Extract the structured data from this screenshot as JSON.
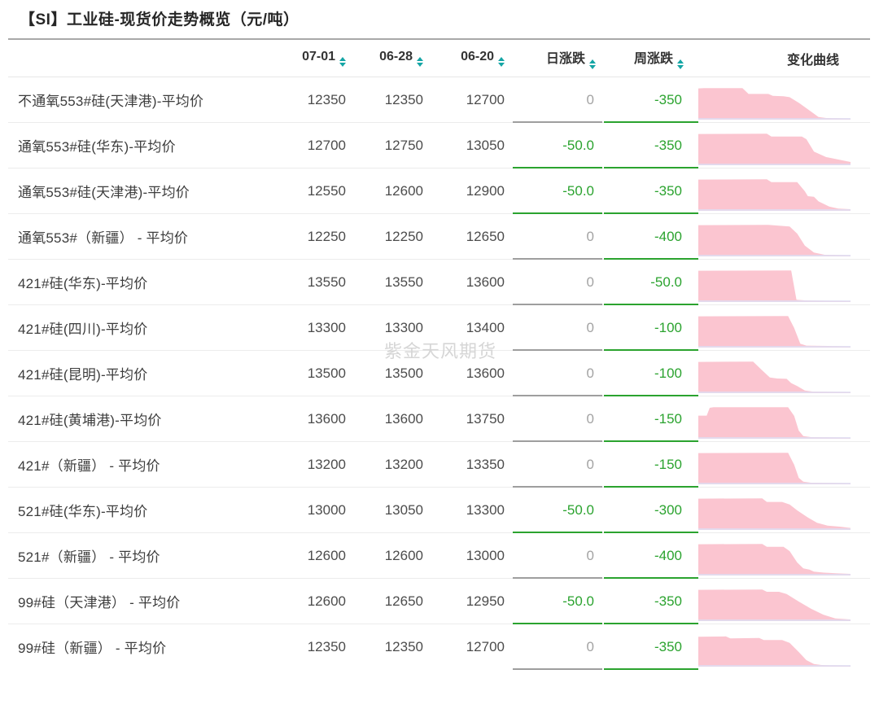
{
  "title": "【SI】工业硅-现货价走势概览（元/吨）",
  "watermark": "紫金天风期货",
  "colors": {
    "green": "#2ba32f",
    "zero_gray": "#a3a3a3",
    "underline_gray": "#9e9e9e",
    "teal": "#15a5a5",
    "pink": "#fbc5d0",
    "spark_baseline": "#dce0f5",
    "text": "#3d3d3d",
    "num": "#4c4c4c",
    "header_text": "#333333",
    "divider": "#ececec",
    "title_rule": "#a9a9a9",
    "watermark": "#d6d6d6"
  },
  "header": {
    "cols": [
      {
        "label": "07-01",
        "sortable": true
      },
      {
        "label": "06-28",
        "sortable": true
      },
      {
        "label": "06-20",
        "sortable": true
      },
      {
        "label": "日涨跌",
        "sortable": true
      },
      {
        "label": "周涨跌",
        "sortable": true
      },
      {
        "label": "变化曲线",
        "sortable": false
      }
    ]
  },
  "rows": [
    {
      "name": "不通氧553#硅(天津港)-平均价",
      "v0701": "12350",
      "v0628": "12350",
      "v0620": "12700",
      "daily": "0",
      "weekly": "-350",
      "spark": [
        [
          0,
          0.96
        ],
        [
          0.04,
          0.97
        ],
        [
          0.29,
          0.97
        ],
        [
          0.33,
          0.79
        ],
        [
          0.46,
          0.79
        ],
        [
          0.49,
          0.73
        ],
        [
          0.56,
          0.72
        ],
        [
          0.6,
          0.69
        ],
        [
          0.66,
          0.52
        ],
        [
          0.74,
          0.25
        ],
        [
          0.79,
          0.08
        ],
        [
          0.84,
          0.05
        ],
        [
          1,
          0.04
        ]
      ]
    },
    {
      "name": "通氧553#硅(华东)-平均价",
      "v0701": "12700",
      "v0628": "12750",
      "v0620": "13050",
      "daily": "-50.0",
      "weekly": "-350",
      "spark": [
        [
          0,
          0.96
        ],
        [
          0.45,
          0.97
        ],
        [
          0.48,
          0.88
        ],
        [
          0.68,
          0.88
        ],
        [
          0.71,
          0.8
        ],
        [
          0.76,
          0.42
        ],
        [
          0.84,
          0.25
        ],
        [
          1,
          0.1
        ]
      ]
    },
    {
      "name": "通氧553#硅(天津港)-平均价",
      "v0701": "12550",
      "v0628": "12600",
      "v0620": "12900",
      "daily": "-50.0",
      "weekly": "-350",
      "spark": [
        [
          0,
          0.96
        ],
        [
          0.45,
          0.97
        ],
        [
          0.48,
          0.88
        ],
        [
          0.65,
          0.88
        ],
        [
          0.7,
          0.6
        ],
        [
          0.72,
          0.45
        ],
        [
          0.76,
          0.43
        ],
        [
          0.79,
          0.29
        ],
        [
          0.86,
          0.13
        ],
        [
          0.92,
          0.07
        ],
        [
          1,
          0.05
        ]
      ]
    },
    {
      "name": "通氧553#（新疆） - 平均价",
      "v0701": "12250",
      "v0628": "12250",
      "v0620": "12650",
      "daily": "0",
      "weekly": "-400",
      "spark": [
        [
          0,
          0.96
        ],
        [
          0.46,
          0.97
        ],
        [
          0.6,
          0.92
        ],
        [
          0.65,
          0.7
        ],
        [
          0.7,
          0.33
        ],
        [
          0.76,
          0.12
        ],
        [
          0.83,
          0.05
        ],
        [
          1,
          0.04
        ]
      ]
    },
    {
      "name": "421#硅(华东)-平均价",
      "v0701": "13550",
      "v0628": "13550",
      "v0620": "13600",
      "daily": "0",
      "weekly": "-50.0",
      "spark": [
        [
          0,
          0.96
        ],
        [
          0.61,
          0.97
        ],
        [
          0.645,
          0.07
        ],
        [
          0.7,
          0.05
        ],
        [
          1,
          0.04
        ]
      ]
    },
    {
      "name": "421#硅(四川)-平均价",
      "v0701": "13300",
      "v0628": "13300",
      "v0620": "13400",
      "daily": "0",
      "weekly": "-100",
      "spark": [
        [
          0,
          0.96
        ],
        [
          0.59,
          0.97
        ],
        [
          0.63,
          0.6
        ],
        [
          0.67,
          0.12
        ],
        [
          0.71,
          0.06
        ],
        [
          1,
          0.04
        ]
      ]
    },
    {
      "name": "421#硅(昆明)-平均价",
      "v0701": "13500",
      "v0628": "13500",
      "v0620": "13600",
      "daily": "0",
      "weekly": "-100",
      "spark": [
        [
          0,
          0.96
        ],
        [
          0.36,
          0.97
        ],
        [
          0.42,
          0.7
        ],
        [
          0.47,
          0.48
        ],
        [
          0.52,
          0.45
        ],
        [
          0.58,
          0.44
        ],
        [
          0.61,
          0.31
        ],
        [
          0.65,
          0.22
        ],
        [
          0.7,
          0.08
        ],
        [
          0.75,
          0.05
        ],
        [
          1,
          0.04
        ]
      ]
    },
    {
      "name": "421#硅(黄埔港)-平均价",
      "v0701": "13600",
      "v0628": "13600",
      "v0620": "13750",
      "daily": "0",
      "weekly": "-150",
      "spark": [
        [
          0,
          0.71
        ],
        [
          0.055,
          0.71
        ],
        [
          0.075,
          0.95
        ],
        [
          0.1,
          0.97
        ],
        [
          0.59,
          0.97
        ],
        [
          0.63,
          0.7
        ],
        [
          0.66,
          0.25
        ],
        [
          0.69,
          0.08
        ],
        [
          0.74,
          0.05
        ],
        [
          1,
          0.04
        ]
      ]
    },
    {
      "name": "421#（新疆） - 平均价",
      "v0701": "13200",
      "v0628": "13200",
      "v0620": "13350",
      "daily": "0",
      "weekly": "-150",
      "spark": [
        [
          0,
          0.96
        ],
        [
          0.59,
          0.97
        ],
        [
          0.63,
          0.6
        ],
        [
          0.66,
          0.2
        ],
        [
          0.69,
          0.08
        ],
        [
          0.74,
          0.05
        ],
        [
          1,
          0.04
        ]
      ]
    },
    {
      "name": "521#硅(华东)-平均价",
      "v0701": "13000",
      "v0628": "13050",
      "v0620": "13300",
      "daily": "-50.0",
      "weekly": "-300",
      "spark": [
        [
          0,
          0.96
        ],
        [
          0.42,
          0.97
        ],
        [
          0.45,
          0.86
        ],
        [
          0.55,
          0.86
        ],
        [
          0.6,
          0.78
        ],
        [
          0.65,
          0.6
        ],
        [
          0.72,
          0.38
        ],
        [
          0.78,
          0.22
        ],
        [
          0.85,
          0.13
        ],
        [
          0.93,
          0.1
        ],
        [
          1,
          0.06
        ]
      ]
    },
    {
      "name": "521#（新疆） - 平均价",
      "v0701": "12600",
      "v0628": "12600",
      "v0620": "13000",
      "daily": "0",
      "weekly": "-400",
      "spark": [
        [
          0,
          0.96
        ],
        [
          0.42,
          0.97
        ],
        [
          0.45,
          0.88
        ],
        [
          0.56,
          0.88
        ],
        [
          0.6,
          0.75
        ],
        [
          0.65,
          0.4
        ],
        [
          0.69,
          0.22
        ],
        [
          0.73,
          0.18
        ],
        [
          0.76,
          0.12
        ],
        [
          0.82,
          0.09
        ],
        [
          0.9,
          0.07
        ],
        [
          1,
          0.05
        ]
      ]
    },
    {
      "name": "99#硅（天津港） - 平均价",
      "v0701": "12600",
      "v0628": "12650",
      "v0620": "12950",
      "daily": "-50.0",
      "weekly": "-350",
      "spark": [
        [
          0,
          0.96
        ],
        [
          0.42,
          0.97
        ],
        [
          0.45,
          0.9
        ],
        [
          0.53,
          0.9
        ],
        [
          0.58,
          0.83
        ],
        [
          0.66,
          0.6
        ],
        [
          0.74,
          0.38
        ],
        [
          0.82,
          0.2
        ],
        [
          0.9,
          0.08
        ],
        [
          1,
          0.05
        ]
      ]
    },
    {
      "name": "99#硅（新疆） - 平均价",
      "v0701": "12350",
      "v0628": "12350",
      "v0620": "12700",
      "daily": "0",
      "weekly": "-350",
      "spark": [
        [
          0,
          0.92
        ],
        [
          0.18,
          0.93
        ],
        [
          0.21,
          0.87
        ],
        [
          0.4,
          0.88
        ],
        [
          0.43,
          0.82
        ],
        [
          0.55,
          0.82
        ],
        [
          0.6,
          0.73
        ],
        [
          0.66,
          0.45
        ],
        [
          0.71,
          0.2
        ],
        [
          0.76,
          0.08
        ],
        [
          0.81,
          0.05
        ],
        [
          1,
          0.04
        ]
      ]
    }
  ],
  "chart_data": {
    "type": "table",
    "title": "【SI】工业硅-现货价走势概览（元/吨）",
    "columns": [
      "07-01",
      "06-28",
      "06-20",
      "日涨跌",
      "周涨跌",
      "变化曲线"
    ],
    "rows": [
      {
        "name": "不通氧553#硅(天津港)-平均价",
        "values": [
          12350,
          12350,
          12700,
          0,
          -350
        ]
      },
      {
        "name": "通氧553#硅(华东)-平均价",
        "values": [
          12700,
          12750,
          13050,
          -50.0,
          -350
        ]
      },
      {
        "name": "通氧553#硅(天津港)-平均价",
        "values": [
          12550,
          12600,
          12900,
          -50.0,
          -350
        ]
      },
      {
        "name": "通氧553#（新疆） - 平均价",
        "values": [
          12250,
          12250,
          12650,
          0,
          -400
        ]
      },
      {
        "name": "421#硅(华东)-平均价",
        "values": [
          13550,
          13550,
          13600,
          0,
          -50.0
        ]
      },
      {
        "name": "421#硅(四川)-平均价",
        "values": [
          13300,
          13300,
          13400,
          0,
          -100
        ]
      },
      {
        "name": "421#硅(昆明)-平均价",
        "values": [
          13500,
          13500,
          13600,
          0,
          -100
        ]
      },
      {
        "name": "421#硅(黄埔港)-平均价",
        "values": [
          13600,
          13600,
          13750,
          0,
          -150
        ]
      },
      {
        "name": "421#（新疆） - 平均价",
        "values": [
          13200,
          13200,
          13350,
          0,
          -150
        ]
      },
      {
        "name": "521#硅(华东)-平均价",
        "values": [
          13000,
          13050,
          13300,
          -50.0,
          -300
        ]
      },
      {
        "name": "521#（新疆） - 平均价",
        "values": [
          12600,
          12600,
          13000,
          0,
          -400
        ]
      },
      {
        "name": "99#硅（天津港） - 平均价",
        "values": [
          12600,
          12650,
          12950,
          -50.0,
          -350
        ]
      },
      {
        "name": "99#硅（新疆） - 平均价",
        "values": [
          12350,
          12350,
          12700,
          0,
          -350
        ]
      }
    ],
    "sparkline_type": "area",
    "sparkline_color": "#fbc5d0"
  }
}
